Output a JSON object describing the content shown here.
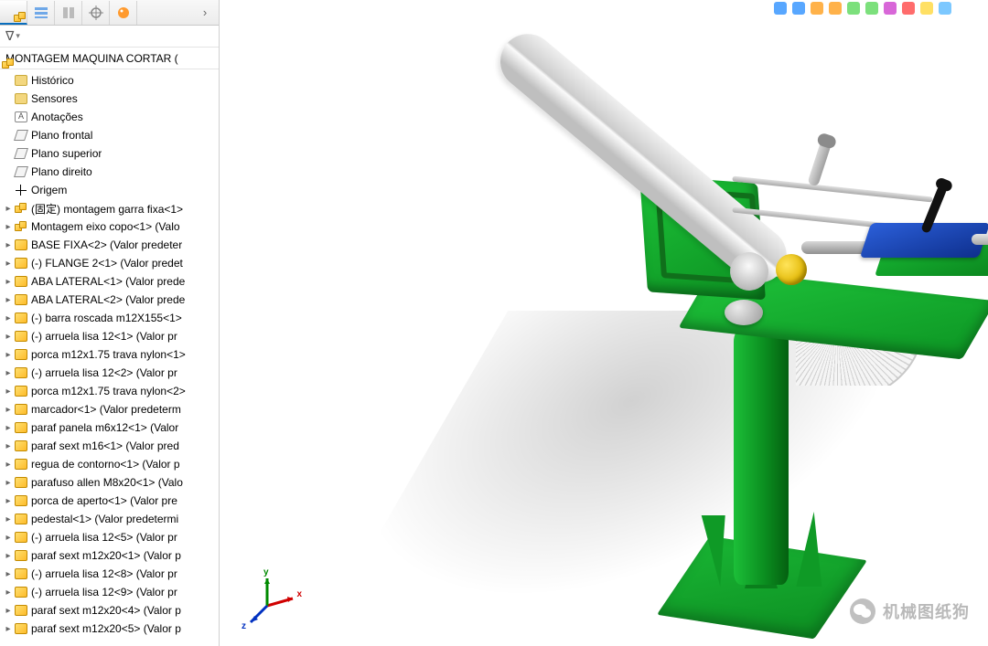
{
  "panel": {
    "tabs": [
      "assembly",
      "configs",
      "display",
      "view",
      "appearance"
    ],
    "root_label": "MONTAGEM MAQUINA CORTAR  ( ",
    "tree": [
      {
        "icon": "folder",
        "expander": "",
        "label": "Histórico"
      },
      {
        "icon": "folder",
        "expander": "",
        "label": "Sensores"
      },
      {
        "icon": "folderA",
        "expander": "",
        "label": "Anotações"
      },
      {
        "icon": "plane",
        "expander": "",
        "label": "Plano frontal"
      },
      {
        "icon": "plane",
        "expander": "",
        "label": "Plano superior"
      },
      {
        "icon": "plane",
        "expander": "",
        "label": "Plano direito"
      },
      {
        "icon": "origin",
        "expander": "",
        "label": "Origem"
      },
      {
        "icon": "asm",
        "expander": "▸",
        "label": "(固定) montagem garra fixa<1>"
      },
      {
        "icon": "asm",
        "expander": "▸",
        "label": "Montagem eixo copo<1>  (Valo"
      },
      {
        "icon": "part",
        "expander": "▸",
        "label": "BASE FIXA<2>  (Valor predeter"
      },
      {
        "icon": "part",
        "expander": "▸",
        "label": "(-) FLANGE 2<1>  (Valor predet"
      },
      {
        "icon": "part",
        "expander": "▸",
        "label": "ABA LATERAL<1>  (Valor prede"
      },
      {
        "icon": "part",
        "expander": "▸",
        "label": "ABA LATERAL<2>  (Valor prede"
      },
      {
        "icon": "part",
        "expander": "▸",
        "label": "(-) barra roscada m12X155<1>"
      },
      {
        "icon": "part",
        "expander": "▸",
        "label": "(-) arruela lisa 12<1>  (Valor pr"
      },
      {
        "icon": "part",
        "expander": "▸",
        "label": "porca m12x1.75 trava nylon<1>"
      },
      {
        "icon": "part",
        "expander": "▸",
        "label": "(-) arruela lisa 12<2>  (Valor pr"
      },
      {
        "icon": "part",
        "expander": "▸",
        "label": "porca m12x1.75 trava nylon<2>"
      },
      {
        "icon": "part",
        "expander": "▸",
        "label": "marcador<1>  (Valor predeterm"
      },
      {
        "icon": "part",
        "expander": "▸",
        "label": "paraf panela m6x12<1>  (Valor "
      },
      {
        "icon": "part",
        "expander": "▸",
        "label": "paraf sext m16<1>  (Valor pred"
      },
      {
        "icon": "part",
        "expander": "▸",
        "label": "regua de contorno<1>  (Valor p"
      },
      {
        "icon": "part",
        "expander": "▸",
        "label": "parafuso allen M8x20<1>  (Valo"
      },
      {
        "icon": "part",
        "expander": "▸",
        "label": "porca de aperto<1>  (Valor pre"
      },
      {
        "icon": "part",
        "expander": "▸",
        "label": "pedestal<1>  (Valor predetermi"
      },
      {
        "icon": "part",
        "expander": "▸",
        "label": "(-) arruela lisa 12<5>  (Valor pr"
      },
      {
        "icon": "part",
        "expander": "▸",
        "label": "paraf sext m12x20<1>  (Valor p"
      },
      {
        "icon": "part",
        "expander": "▸",
        "label": "(-) arruela lisa 12<8>  (Valor pr"
      },
      {
        "icon": "part",
        "expander": "▸",
        "label": "(-) arruela lisa 12<9>  (Valor pr"
      },
      {
        "icon": "part",
        "expander": "▸",
        "label": "paraf sext m12x20<4>  (Valor p"
      },
      {
        "icon": "part",
        "expander": "▸",
        "label": "paraf sext m12x20<5>  (Valor p"
      }
    ]
  },
  "triad": {
    "x": "x",
    "y": "y",
    "z": "z"
  },
  "watermark": {
    "text": "机械图纸狗"
  },
  "toolbar_colors": [
    "#58a7ff",
    "#58a7ff",
    "#ffb24a",
    "#ffb24a",
    "#7ce07c",
    "#7ce07c",
    "#d867d8",
    "#ff6c6c",
    "#ffe064",
    "#7cc8ff"
  ],
  "model_colors": {
    "green_light": "#1cc238",
    "green_dark": "#0c8f21",
    "blue_light": "#2b5fd9",
    "blue_dark": "#0e2f8d",
    "yellow": "#ffe45a",
    "metal_light": "#e4e4e4",
    "metal_dark": "#a0a0a0"
  }
}
